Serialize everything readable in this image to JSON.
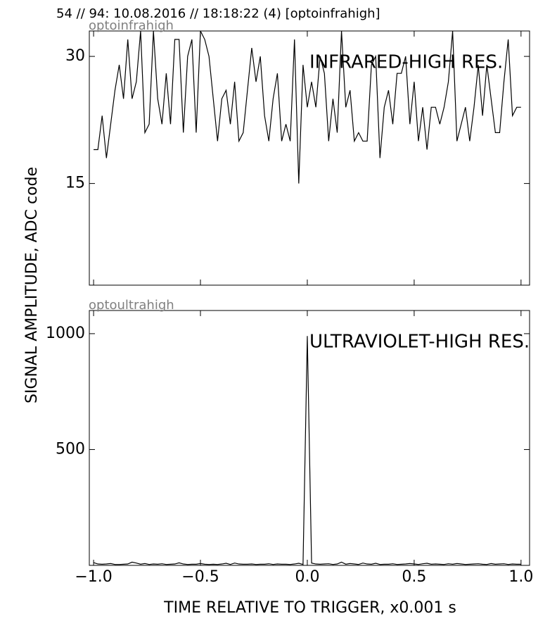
{
  "title": "54 // 94:   10.08.2016 // 18:18:22 (4)  [optoinfrahigh]",
  "y_label": "SIGNAL AMPLITUDE,  ADC code",
  "x_label": "TIME RELATIVE TO TRIGGER,   x0.001 s",
  "chart_data": [
    {
      "type": "line",
      "label": "optoinfrahigh",
      "annotation": "INFRARED-HIGH RES.",
      "x": [
        -1.0,
        -0.98,
        -0.96,
        -0.94,
        -0.92,
        -0.9,
        -0.88,
        -0.86,
        -0.84,
        -0.82,
        -0.8,
        -0.78,
        -0.76,
        -0.74,
        -0.72,
        -0.7,
        -0.68,
        -0.66,
        -0.64,
        -0.62,
        -0.6,
        -0.58,
        -0.56,
        -0.54,
        -0.52,
        -0.5,
        -0.48,
        -0.46,
        -0.44,
        -0.42,
        -0.4,
        -0.38,
        -0.36,
        -0.34,
        -0.32,
        -0.3,
        -0.28,
        -0.26,
        -0.24,
        -0.22,
        -0.2,
        -0.18,
        -0.16,
        -0.14,
        -0.12,
        -0.1,
        -0.08,
        -0.06,
        -0.04,
        -0.02,
        0.0,
        0.02,
        0.04,
        0.06,
        0.08,
        0.1,
        0.12,
        0.14,
        0.16,
        0.18,
        0.2,
        0.22,
        0.24,
        0.26,
        0.28,
        0.3,
        0.32,
        0.34,
        0.36,
        0.38,
        0.4,
        0.42,
        0.44,
        0.46,
        0.48,
        0.5,
        0.52,
        0.54,
        0.56,
        0.58,
        0.6,
        0.62,
        0.64,
        0.66,
        0.68,
        0.7,
        0.72,
        0.74,
        0.76,
        0.78,
        0.8,
        0.82,
        0.84,
        0.86,
        0.88,
        0.9,
        0.92,
        0.94,
        0.96,
        0.98,
        1.0
      ],
      "series": [
        {
          "color": "#000000",
          "values": [
            19,
            19,
            23,
            18,
            22,
            26,
            29,
            25,
            32,
            25,
            27,
            33,
            21,
            22,
            33,
            25,
            22,
            28,
            22,
            32,
            32,
            21,
            30,
            32,
            21,
            33,
            32,
            30,
            25,
            20,
            25,
            26,
            22,
            27,
            20,
            21,
            26,
            31,
            27,
            30,
            23,
            20,
            25,
            28,
            20,
            22,
            20,
            32,
            15,
            29,
            24,
            27,
            24,
            30,
            28,
            20,
            25,
            21,
            33,
            24,
            26,
            20,
            21,
            20,
            20,
            29,
            30,
            18,
            24,
            26,
            22,
            28,
            28,
            30,
            22,
            27,
            20,
            24,
            19,
            24,
            24,
            22,
            24,
            27,
            33,
            20,
            22,
            24,
            20,
            24,
            29,
            23,
            29,
            25,
            21,
            21,
            27,
            32,
            23,
            24,
            24
          ]
        }
      ],
      "xlim": [
        -1.02,
        1.04
      ],
      "ylim": [
        3,
        33
      ],
      "yticks": [
        15,
        30
      ]
    },
    {
      "type": "line",
      "label": "optoultrahigh",
      "annotation": "ULTRAVIOLET-HIGH RES.",
      "x": [
        -1.0,
        -0.98,
        -0.96,
        -0.94,
        -0.92,
        -0.9,
        -0.88,
        -0.86,
        -0.84,
        -0.82,
        -0.8,
        -0.78,
        -0.76,
        -0.74,
        -0.72,
        -0.7,
        -0.68,
        -0.66,
        -0.64,
        -0.62,
        -0.6,
        -0.58,
        -0.56,
        -0.54,
        -0.52,
        -0.5,
        -0.48,
        -0.46,
        -0.44,
        -0.42,
        -0.4,
        -0.38,
        -0.36,
        -0.34,
        -0.32,
        -0.3,
        -0.28,
        -0.26,
        -0.24,
        -0.22,
        -0.2,
        -0.18,
        -0.16,
        -0.14,
        -0.12,
        -0.1,
        -0.08,
        -0.06,
        -0.04,
        -0.02,
        0.0,
        0.02,
        0.04,
        0.06,
        0.08,
        0.1,
        0.12,
        0.14,
        0.16,
        0.18,
        0.2,
        0.22,
        0.24,
        0.26,
        0.28,
        0.3,
        0.32,
        0.34,
        0.36,
        0.38,
        0.4,
        0.42,
        0.44,
        0.46,
        0.48,
        0.5,
        0.52,
        0.54,
        0.56,
        0.58,
        0.6,
        0.62,
        0.64,
        0.66,
        0.68,
        0.7,
        0.72,
        0.74,
        0.76,
        0.78,
        0.8,
        0.82,
        0.84,
        0.86,
        0.88,
        0.9,
        0.92,
        0.94,
        0.96,
        0.98,
        1.0
      ],
      "series": [
        {
          "color": "#000000",
          "values": [
            12,
            6,
            5,
            6,
            8,
            4,
            4,
            5,
            6,
            14,
            10,
            5,
            8,
            4,
            6,
            5,
            7,
            4,
            5,
            6,
            11,
            6,
            4,
            5,
            5,
            8,
            5,
            4,
            5,
            4,
            6,
            9,
            4,
            10,
            6,
            5,
            5,
            6,
            4,
            5,
            5,
            7,
            4,
            6,
            5,
            5,
            4,
            6,
            9,
            4,
            990,
            10,
            6,
            5,
            6,
            7,
            4,
            6,
            14,
            5,
            8,
            6,
            4,
            10,
            6,
            5,
            9,
            4,
            5,
            5,
            7,
            4,
            5,
            6,
            8,
            6,
            4,
            7,
            9,
            5,
            6,
            5,
            4,
            7,
            5,
            8,
            6,
            4,
            5,
            6,
            7,
            5,
            4,
            8,
            5,
            6,
            7,
            4,
            6,
            5,
            5
          ]
        }
      ],
      "xlim": [
        -1.02,
        1.04
      ],
      "ylim": [
        0,
        1100
      ],
      "yticks": [
        500,
        1000
      ],
      "xticks": [
        {
          "value": -1.0,
          "label": "−1.0"
        },
        {
          "value": -0.5,
          "label": "−0.5"
        },
        {
          "value": 0.0,
          "label": "0.0"
        },
        0.5,
        {
          "value": 1.0,
          "label": "1.0"
        }
      ]
    }
  ]
}
